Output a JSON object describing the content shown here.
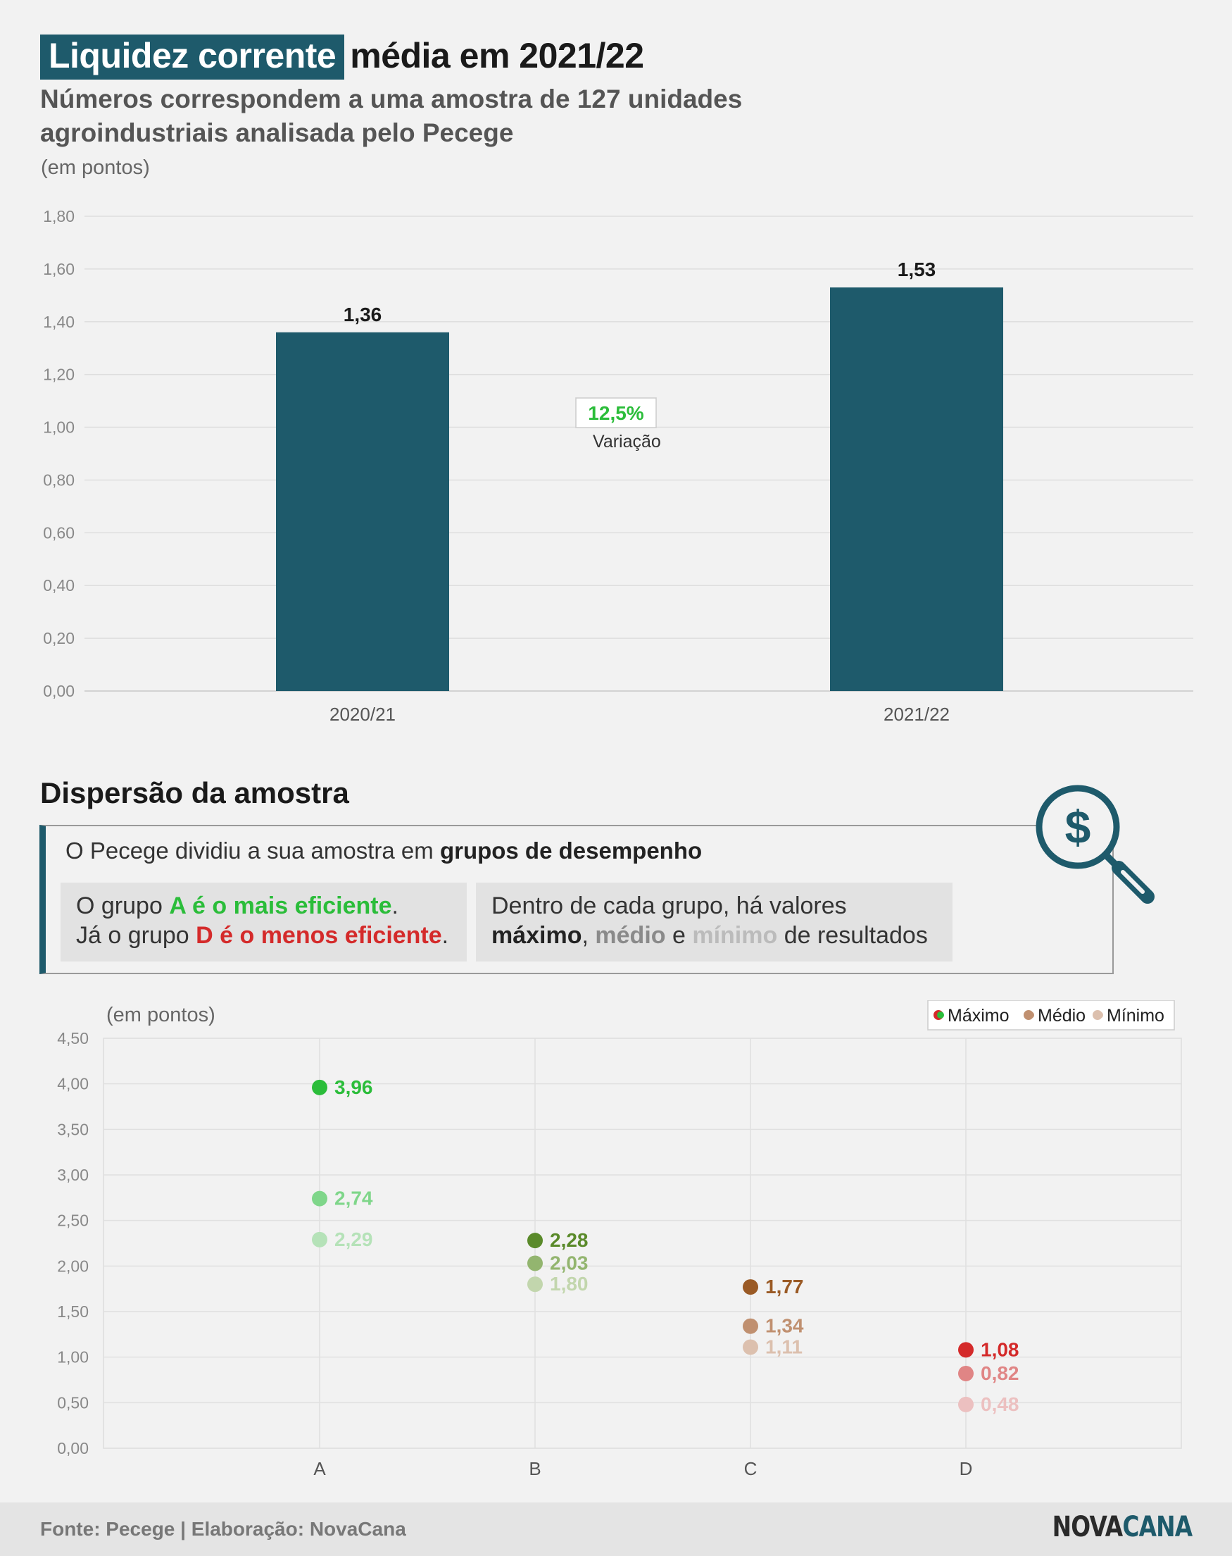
{
  "header": {
    "title_highlight": "Liquidez corrente",
    "title_rest": "média em 2021/22",
    "subtitle": "Números correspondem a uma amostra de 127 unidades agroindustriais analisada pelo Pecege",
    "unit": "(em pontos)"
  },
  "colors": {
    "bar": "#1e5a6b",
    "variation": "#2bbd3a",
    "A": [
      "#2bbd3a",
      "#7fd68a",
      "#b5e2b8"
    ],
    "B": [
      "#5a8a2a",
      "#93b56f",
      "#c2d6ad"
    ],
    "C": [
      "#9a5a25",
      "#c09070",
      "#dcc0ae"
    ],
    "D": [
      "#d42a2a",
      "#e08585",
      "#ecc0c0"
    ]
  },
  "chart_data": [
    {
      "type": "bar",
      "categories": [
        "2020/21",
        "2021/22"
      ],
      "values": [
        1.36,
        1.53
      ],
      "value_labels": [
        "1,36",
        "1,53"
      ],
      "ylim": [
        0,
        1.8
      ],
      "yticks": [
        "0,00",
        "0,20",
        "0,40",
        "0,60",
        "0,80",
        "1,00",
        "1,20",
        "1,40",
        "1,60",
        "1,80"
      ],
      "annotation": {
        "value": "12,5%",
        "label": "Variação"
      },
      "grid": true
    },
    {
      "type": "scatter",
      "categories": [
        "A",
        "B",
        "C",
        "D"
      ],
      "series": [
        {
          "name": "Máximo",
          "values": [
            3.96,
            2.28,
            1.77,
            1.08
          ],
          "labels": [
            "3,96",
            "2,28",
            "1,77",
            "1,08"
          ]
        },
        {
          "name": "Médio",
          "values": [
            2.74,
            2.03,
            1.34,
            0.82
          ],
          "labels": [
            "2,74",
            "2,03",
            "1,34",
            "0,82"
          ]
        },
        {
          "name": "Mínimo",
          "values": [
            2.29,
            1.8,
            1.11,
            0.48
          ],
          "labels": [
            "2,29",
            "1,80",
            "1,11",
            "0,48"
          ]
        }
      ],
      "ylim": [
        0,
        4.5
      ],
      "yticks": [
        "0,00",
        "0,50",
        "1,00",
        "1,50",
        "2,00",
        "2,50",
        "3,00",
        "3,50",
        "4,00",
        "4,50"
      ],
      "ylabel": "(em pontos)",
      "legend_position": "top-right",
      "grid": true
    }
  ],
  "dispersion": {
    "title": "Dispersão da amostra",
    "intro_plain": "O Pecege dividiu a sua amostra em ",
    "intro_bold": "grupos de desempenho",
    "card1_line1_a": "O grupo ",
    "card1_line1_b": "A é o mais eficiente",
    "card1_line1_c": ".",
    "card1_line2_a": "Já o grupo ",
    "card1_line2_b": "D é o menos eficiente",
    "card1_line2_c": ".",
    "card2_line1": "Dentro de cada grupo, há valores",
    "card2_max": "máximo",
    "card2_sep1": ", ",
    "card2_med": "médio",
    "card2_sep2": " e ",
    "card2_min": "mínimo",
    "card2_end": " de resultados",
    "icon": "dollar-magnifier-icon"
  },
  "footer": {
    "source": "Fonte: Pecege | Elaboração: NovaCana",
    "logo_part1": "NOVA",
    "logo_part2": "CANA"
  }
}
